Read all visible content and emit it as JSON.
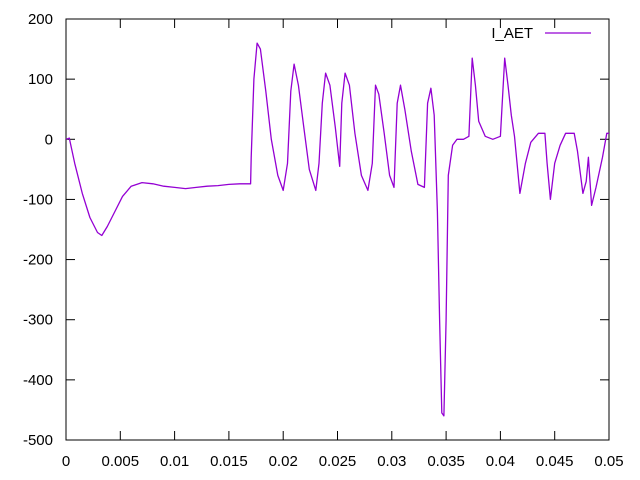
{
  "chart_data": {
    "type": "line",
    "title": "",
    "xlabel": "",
    "ylabel": "",
    "xlim": [
      0,
      0.05
    ],
    "ylim": [
      -500,
      200
    ],
    "grid": false,
    "legend_position": "top-right",
    "x_ticks": [
      0,
      0.005,
      0.01,
      0.015,
      0.02,
      0.025,
      0.03,
      0.035,
      0.04,
      0.045,
      0.05
    ],
    "x_tick_labels": [
      "0",
      "0.005",
      "0.01",
      "0.015",
      "0.02",
      "0.025",
      "0.03",
      "0.035",
      "0.04",
      "0.045",
      "0.05"
    ],
    "y_ticks": [
      -500,
      -400,
      -300,
      -200,
      -100,
      0,
      100,
      200
    ],
    "y_tick_labels": [
      "-500",
      "-400",
      "-300",
      "-200",
      "-100",
      "0",
      "100",
      "200"
    ],
    "series": [
      {
        "name": "I_AET",
        "color": "#9400d3",
        "points": [
          [
            0.0,
            0
          ],
          [
            0.0003,
            2
          ],
          [
            0.0008,
            -40
          ],
          [
            0.0015,
            -90
          ],
          [
            0.0022,
            -130
          ],
          [
            0.0029,
            -155
          ],
          [
            0.0033,
            -160
          ],
          [
            0.0038,
            -145
          ],
          [
            0.0045,
            -120
          ],
          [
            0.0052,
            -95
          ],
          [
            0.006,
            -78
          ],
          [
            0.007,
            -72
          ],
          [
            0.008,
            -74
          ],
          [
            0.009,
            -78
          ],
          [
            0.01,
            -80
          ],
          [
            0.011,
            -82
          ],
          [
            0.012,
            -80
          ],
          [
            0.013,
            -78
          ],
          [
            0.014,
            -77
          ],
          [
            0.015,
            -75
          ],
          [
            0.016,
            -74
          ],
          [
            0.017,
            -74
          ],
          [
            0.01705,
            -30
          ],
          [
            0.0173,
            100
          ],
          [
            0.0176,
            160
          ],
          [
            0.0179,
            150
          ],
          [
            0.0184,
            80
          ],
          [
            0.0189,
            0
          ],
          [
            0.0195,
            -60
          ],
          [
            0.02,
            -85
          ],
          [
            0.0204,
            -40
          ],
          [
            0.0207,
            80
          ],
          [
            0.021,
            125
          ],
          [
            0.0214,
            90
          ],
          [
            0.0219,
            20
          ],
          [
            0.0224,
            -50
          ],
          [
            0.023,
            -85
          ],
          [
            0.0233,
            -40
          ],
          [
            0.0236,
            60
          ],
          [
            0.0239,
            110
          ],
          [
            0.0243,
            90
          ],
          [
            0.0248,
            20
          ],
          [
            0.0252,
            -45
          ],
          [
            0.0254,
            60
          ],
          [
            0.0257,
            110
          ],
          [
            0.0261,
            90
          ],
          [
            0.0266,
            10
          ],
          [
            0.0272,
            -60
          ],
          [
            0.0278,
            -85
          ],
          [
            0.0282,
            -40
          ],
          [
            0.0285,
            90
          ],
          [
            0.0288,
            75
          ],
          [
            0.0293,
            10
          ],
          [
            0.0298,
            -60
          ],
          [
            0.0302,
            -80
          ],
          [
            0.0305,
            60
          ],
          [
            0.0308,
            90
          ],
          [
            0.0312,
            50
          ],
          [
            0.0318,
            -20
          ],
          [
            0.0324,
            -75
          ],
          [
            0.033,
            -80
          ],
          [
            0.0333,
            60
          ],
          [
            0.0336,
            85
          ],
          [
            0.0339,
            40
          ],
          [
            0.0342,
            -120
          ],
          [
            0.0344,
            -300
          ],
          [
            0.0346,
            -455
          ],
          [
            0.0348,
            -460
          ],
          [
            0.035,
            -300
          ],
          [
            0.0352,
            -60
          ],
          [
            0.0356,
            -10
          ],
          [
            0.036,
            0
          ],
          [
            0.0366,
            0
          ],
          [
            0.0371,
            5
          ],
          [
            0.0374,
            135
          ],
          [
            0.0377,
            90
          ],
          [
            0.038,
            30
          ],
          [
            0.0386,
            5
          ],
          [
            0.0393,
            0
          ],
          [
            0.04,
            5
          ],
          [
            0.0404,
            135
          ],
          [
            0.0407,
            90
          ],
          [
            0.041,
            40
          ],
          [
            0.0413,
            5
          ],
          [
            0.0418,
            -90
          ],
          [
            0.0423,
            -40
          ],
          [
            0.0428,
            -5
          ],
          [
            0.0435,
            10
          ],
          [
            0.0441,
            10
          ],
          [
            0.0443,
            -40
          ],
          [
            0.0446,
            -100
          ],
          [
            0.045,
            -40
          ],
          [
            0.0455,
            -10
          ],
          [
            0.046,
            10
          ],
          [
            0.0468,
            10
          ],
          [
            0.0471,
            -20
          ],
          [
            0.0476,
            -90
          ],
          [
            0.0479,
            -70
          ],
          [
            0.0481,
            -30
          ],
          [
            0.0484,
            -110
          ],
          [
            0.0488,
            -80
          ],
          [
            0.0494,
            -30
          ],
          [
            0.0498,
            10
          ],
          [
            0.05,
            10
          ]
        ]
      }
    ]
  }
}
